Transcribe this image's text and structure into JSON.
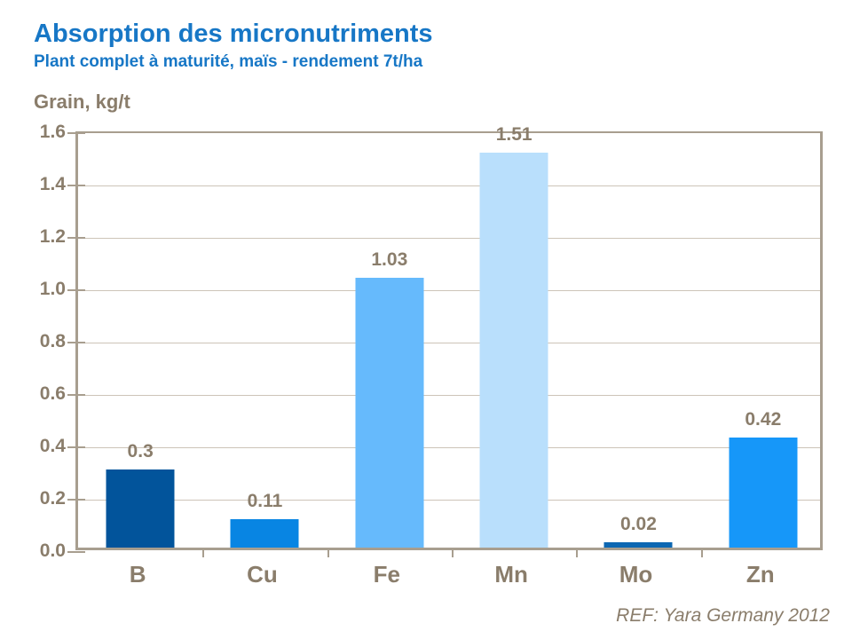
{
  "header": {
    "title": "Absorption des micronutriments",
    "subtitle": "Plant complet à maturité, maïs - rendement 7t/ha"
  },
  "axis_title": "Grain, kg/t",
  "footer": {
    "reference": "REF: Yara Germany 2012"
  },
  "colors": {
    "title_blue": "#1777C6",
    "text_taupe": "#8A7D6B",
    "axis_line": "#A89E8F",
    "gridline": "#CDC4B8",
    "background": "#FFFFFF"
  },
  "chart_data": {
    "type": "bar",
    "title": "Absorption des micronutriments",
    "subtitle": "Plant complet à maturité, maïs - rendement 7t/ha",
    "ylabel": "Grain, kg/t",
    "xlabel": "",
    "categories": [
      "B",
      "Cu",
      "Fe",
      "Mn",
      "Mo",
      "Zn"
    ],
    "values": [
      0.3,
      0.11,
      1.03,
      1.51,
      0.02,
      0.42
    ],
    "value_labels": [
      "0.3",
      "0.11",
      "1.03",
      "1.51",
      "0.02",
      "0.42"
    ],
    "bar_colors": [
      "#02549B",
      "#0885E3",
      "#66BAFC",
      "#B9DFFC",
      "#0C67B2",
      "#1697F9"
    ],
    "ylim": [
      0,
      1.6
    ],
    "ytick_step": 0.2,
    "ytick_labels": [
      "0.0",
      "0.2",
      "0.4",
      "0.6",
      "0.8",
      "1.0",
      "1.2",
      "1.4",
      "1.6"
    ],
    "grid": true,
    "legend_position": "none",
    "annotation": "REF: Yara Germany 2012"
  }
}
